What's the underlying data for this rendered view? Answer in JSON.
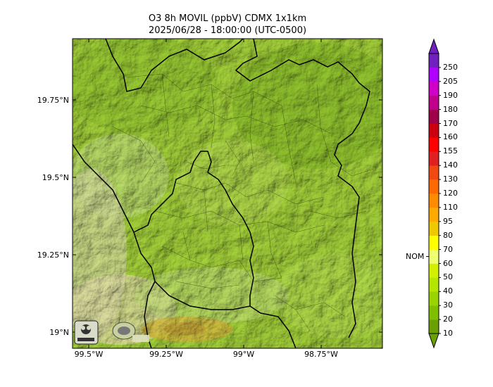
{
  "title_line1": "O3 8h MOVIL (ppbV) CDMX 1x1km",
  "title_line2": "2025/06/28 - 18:00:00 (UTC-0500)",
  "lat_ticks": [
    "19.75°N",
    "19.5°N",
    "19.25°N",
    "19°N"
  ],
  "lon_ticks": [
    "99.5°W",
    "99.25°W",
    "99°W",
    "98.75°W"
  ],
  "colorbar": {
    "labels": [
      "10",
      "20",
      "30",
      "40",
      "50",
      "60",
      "70",
      "80",
      "95",
      "110",
      "120",
      "130",
      "140",
      "155",
      "160",
      "170",
      "180",
      "190",
      "205",
      "250"
    ],
    "colors": [
      "#6aa000",
      "#7fbf00",
      "#9ad400",
      "#b4e600",
      "#d2f000",
      "#eeff70",
      "#ffff00",
      "#f0c800",
      "#ffaa00",
      "#ff8c00",
      "#ff6a00",
      "#f04a10",
      "#e02020",
      "#ff0000",
      "#cc0010",
      "#a0004a",
      "#c0008c",
      "#d000c8",
      "#b000ff",
      "#7020c0"
    ],
    "nom_label": "NOM",
    "nom_value": 65
  },
  "logos": [
    "SEDEMA",
    "CALIDAD DEL AIRE"
  ]
}
